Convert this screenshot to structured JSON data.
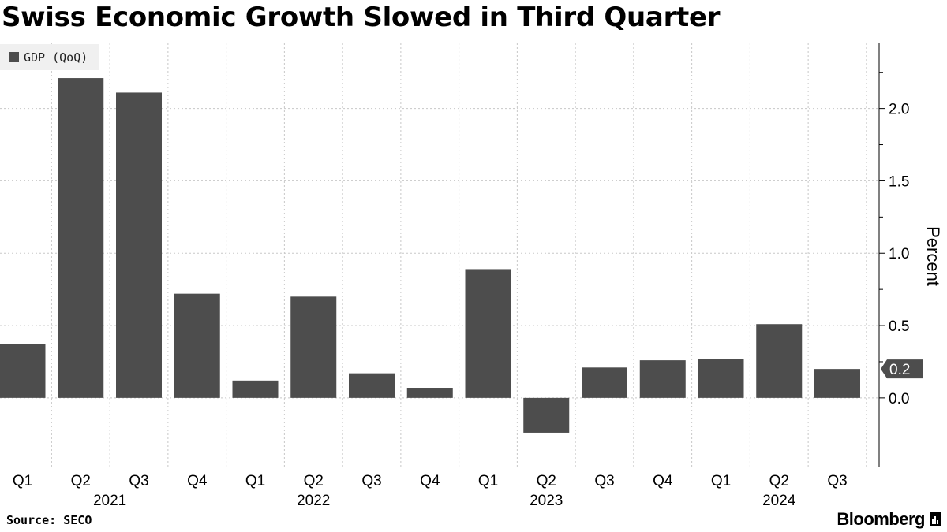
{
  "title": "Swiss Economic Growth Slowed in Third Quarter",
  "source": "Source: SECO",
  "brand": "Bloomberg",
  "chart_data": {
    "type": "bar",
    "series": [
      {
        "name": "GDP (QoQ)",
        "color": "#4d4d4d",
        "values": [
          0.37,
          2.21,
          2.11,
          0.72,
          0.12,
          0.7,
          0.17,
          0.07,
          0.89,
          -0.24,
          0.21,
          0.26,
          0.27,
          0.51,
          0.2
        ]
      }
    ],
    "categories": [
      "Q1",
      "Q2",
      "Q3",
      "Q4",
      "Q1",
      "Q2",
      "Q3",
      "Q4",
      "Q1",
      "Q2",
      "Q3",
      "Q4",
      "Q1",
      "Q2",
      "Q3"
    ],
    "year_labels": [
      {
        "label": "2021",
        "index": 1.5
      },
      {
        "label": "2022",
        "index": 5
      },
      {
        "label": "2023",
        "index": 9
      },
      {
        "label": "2024",
        "index": 13
      }
    ],
    "ylabel": "Percent",
    "ylim": [
      -0.48,
      2.45
    ],
    "yticks": [
      0.0,
      0.5,
      1.0,
      1.5,
      2.0
    ],
    "ytick_labels": [
      "0.0",
      "0.5",
      "1.0",
      "1.5",
      "2.0"
    ],
    "last_value_label": "0.2",
    "grid": true
  }
}
